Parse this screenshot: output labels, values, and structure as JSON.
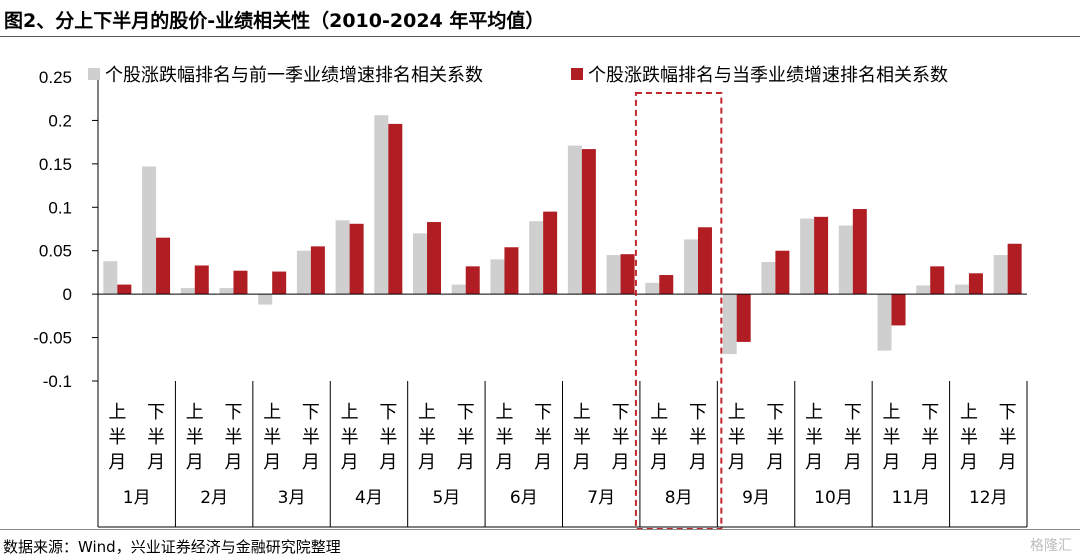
{
  "title": "图2、分上下半月的股价-业绩相关性（2010-2024 年平均值）",
  "source": "数据来源：Wind，兴业证券经济与金融研究院整理",
  "watermark": "格隆汇",
  "colors": {
    "series1": "#cfcfcf",
    "series2": "#b01e23",
    "highlight": "#c0272d",
    "axis": "#000000"
  },
  "chart_data": {
    "type": "bar",
    "title": "",
    "xlabel": "",
    "ylabel": "",
    "ylim": [
      -0.1,
      0.25
    ],
    "yticks": [
      "0.25",
      "0.2",
      "0.15",
      "0.1",
      "0.05",
      "0",
      "-0.05",
      "-0.1"
    ],
    "ytick_values": [
      0.25,
      0.2,
      0.15,
      0.1,
      0.05,
      0,
      -0.05,
      -0.1
    ],
    "grid": false,
    "legend_position": "top",
    "months": [
      "1月",
      "2月",
      "3月",
      "4月",
      "5月",
      "6月",
      "7月",
      "8月",
      "9月",
      "10月",
      "11月",
      "12月"
    ],
    "halves": [
      "上半月",
      "下半月"
    ],
    "categories": [
      "1月上半月",
      "1月下半月",
      "2月上半月",
      "2月下半月",
      "3月上半月",
      "3月下半月",
      "4月上半月",
      "4月下半月",
      "5月上半月",
      "5月下半月",
      "6月上半月",
      "6月下半月",
      "7月上半月",
      "7月下半月",
      "8月上半月",
      "8月下半月",
      "9月上半月",
      "9月下半月",
      "10月上半月",
      "10月下半月",
      "11月上半月",
      "11月下半月",
      "12月上半月",
      "12月下半月"
    ],
    "series": [
      {
        "name": "个股涨跌幅排名与前一季业绩增速排名相关系数",
        "values": [
          0.038,
          0.147,
          0.007,
          0.007,
          -0.012,
          0.05,
          0.085,
          0.206,
          0.07,
          0.011,
          0.04,
          0.084,
          0.171,
          0.045,
          0.013,
          0.063,
          -0.069,
          0.037,
          0.087,
          0.079,
          -0.065,
          0.01,
          0.011,
          0.045
        ]
      },
      {
        "name": "个股涨跌幅排名与当季业绩增速排名相关系数",
        "values": [
          0.011,
          0.065,
          0.033,
          0.027,
          0.026,
          0.055,
          0.081,
          0.196,
          0.083,
          0.032,
          0.054,
          0.095,
          0.167,
          0.046,
          0.022,
          0.077,
          -0.055,
          0.05,
          0.089,
          0.098,
          -0.036,
          0.032,
          0.024,
          0.058
        ]
      }
    ],
    "highlight_month": "8月"
  }
}
